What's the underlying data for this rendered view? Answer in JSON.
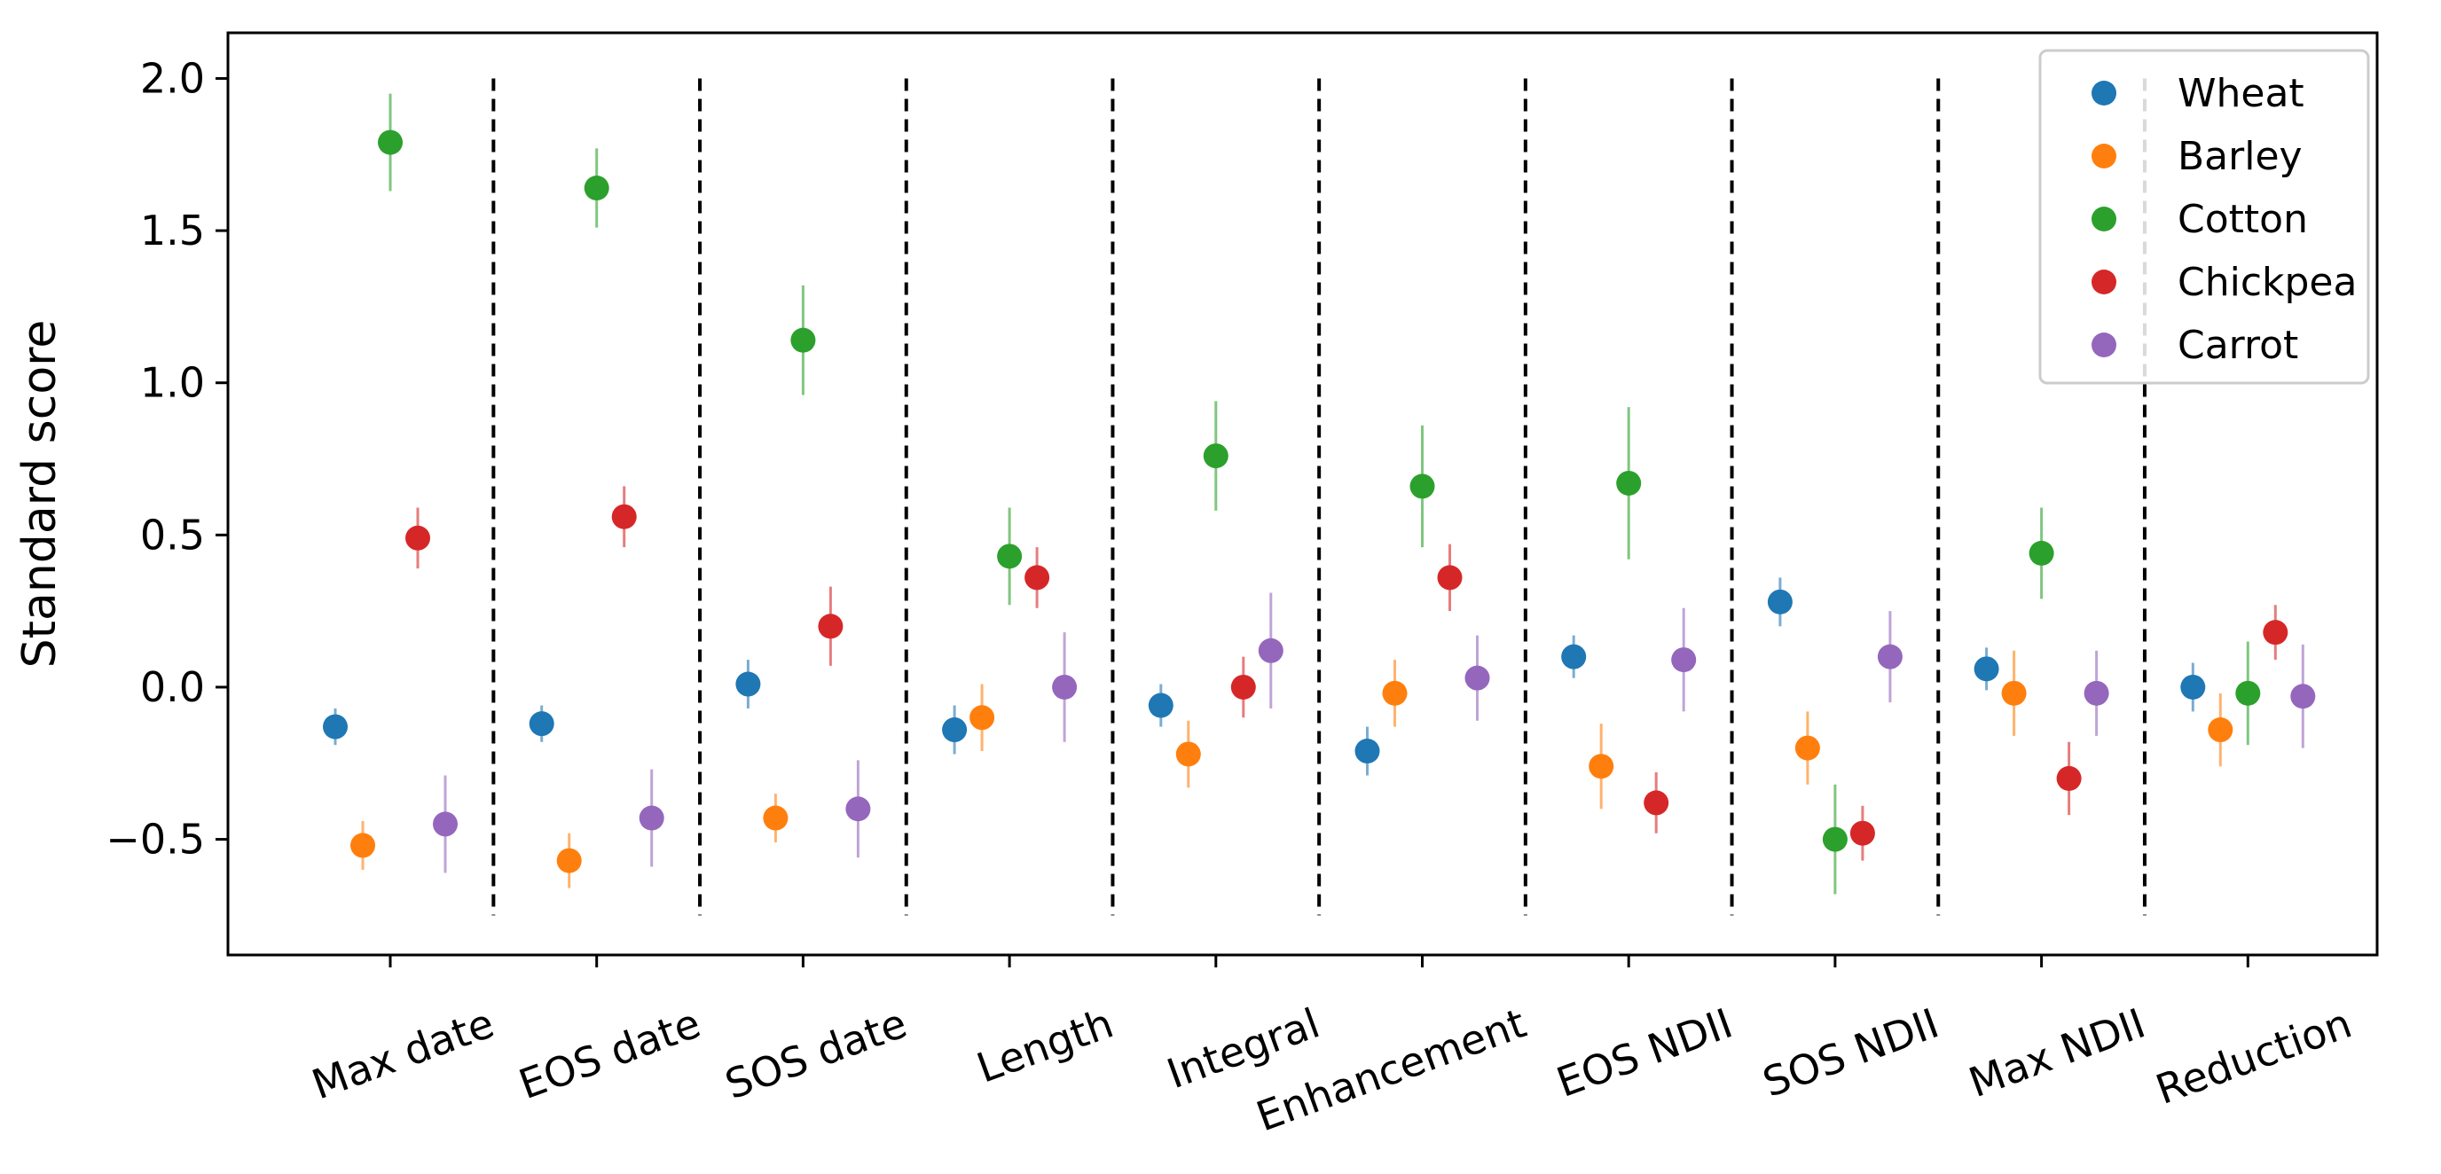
{
  "chart_data": {
    "type": "scatter",
    "title": "",
    "xlabel": "",
    "ylabel": "Standard score",
    "ylim": [
      -0.88,
      2.15
    ],
    "yticks": [
      -0.5,
      0.0,
      0.5,
      1.0,
      1.5,
      2.0
    ],
    "ytick_labels": [
      "−0.5",
      "0.0",
      "0.5",
      "1.0",
      "1.5",
      "2.0"
    ],
    "categories": [
      "Max date",
      "EOS date",
      "SOS date",
      "Length",
      "Integral",
      "Enhancement",
      "EOS NDII",
      "SOS NDII",
      "Max NDII",
      "Reduction"
    ],
    "legend_position": "top-right",
    "grid": false,
    "series": [
      {
        "name": "Wheat",
        "color": "#1f77b4",
        "values": [
          -0.13,
          -0.12,
          0.01,
          -0.14,
          -0.06,
          -0.21,
          0.1,
          0.28,
          0.06,
          0.0
        ],
        "errors": [
          0.06,
          0.06,
          0.08,
          0.08,
          0.07,
          0.08,
          0.07,
          0.08,
          0.07,
          0.08
        ]
      },
      {
        "name": "Barley",
        "color": "#ff7f0e",
        "values": [
          -0.52,
          -0.57,
          -0.43,
          -0.1,
          -0.22,
          -0.02,
          -0.26,
          -0.2,
          -0.02,
          -0.14
        ],
        "errors": [
          0.08,
          0.09,
          0.08,
          0.11,
          0.11,
          0.11,
          0.14,
          0.12,
          0.14,
          0.12
        ]
      },
      {
        "name": "Cotton",
        "color": "#2ca02c",
        "values": [
          1.79,
          1.64,
          1.14,
          0.43,
          0.76,
          0.66,
          0.67,
          -0.5,
          0.44,
          -0.02
        ],
        "errors": [
          0.16,
          0.13,
          0.18,
          0.16,
          0.18,
          0.2,
          0.25,
          0.18,
          0.15,
          0.17
        ]
      },
      {
        "name": "Chickpea",
        "color": "#d62728",
        "values": [
          0.49,
          0.56,
          0.2,
          0.36,
          0.0,
          0.36,
          -0.38,
          -0.48,
          -0.3,
          0.18
        ],
        "errors": [
          0.1,
          0.1,
          0.13,
          0.1,
          0.1,
          0.11,
          0.1,
          0.09,
          0.12,
          0.09
        ]
      },
      {
        "name": "Carrot",
        "color": "#9467bd",
        "values": [
          -0.45,
          -0.43,
          -0.4,
          0.0,
          0.12,
          0.03,
          0.09,
          0.1,
          -0.02,
          -0.03
        ],
        "errors": [
          0.16,
          0.16,
          0.16,
          0.18,
          0.19,
          0.14,
          0.17,
          0.15,
          0.14,
          0.17
        ]
      }
    ]
  }
}
